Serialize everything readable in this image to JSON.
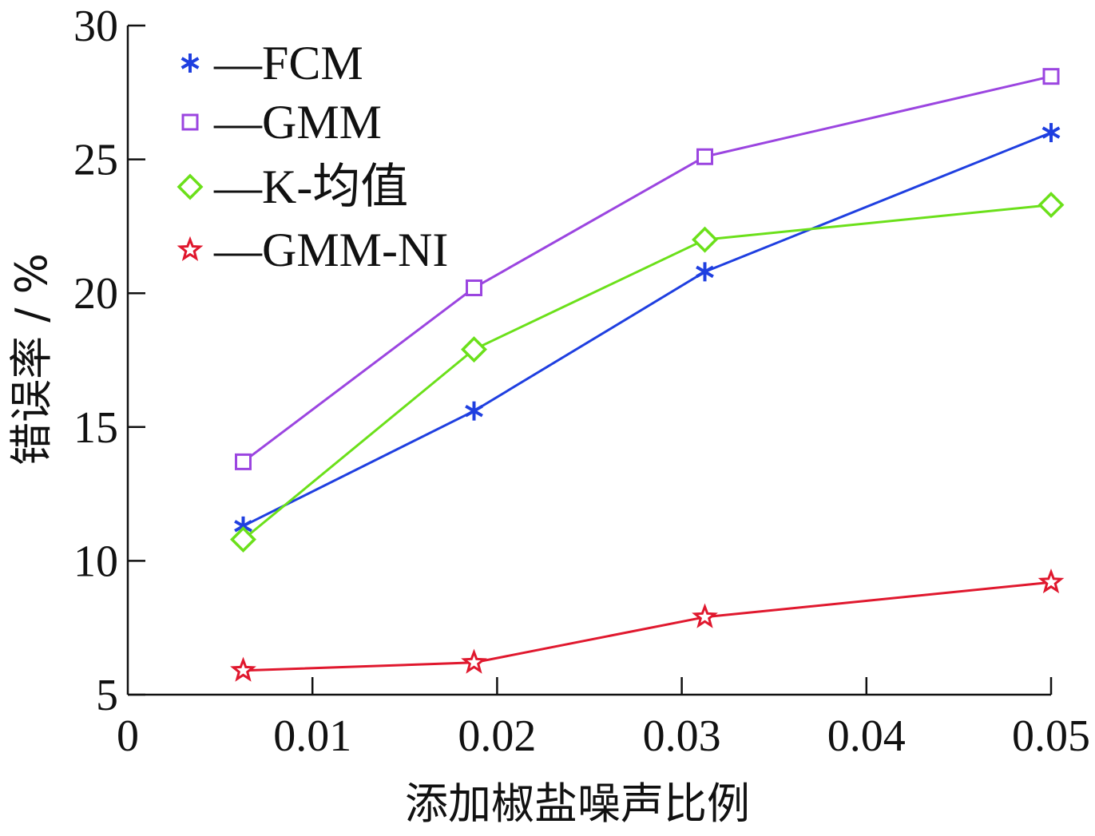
{
  "chart_data": {
    "type": "line",
    "xlabel": "添加椒盐噪声比例",
    "ylabel": "错误率 / %",
    "xlim": [
      0,
      0.05
    ],
    "ylim": [
      5,
      30
    ],
    "xticks": [
      "0",
      "0.01",
      "0.02",
      "0.03",
      "0.04",
      "0.05"
    ],
    "xtick_values": [
      0,
      0.01,
      0.02,
      0.03,
      0.04,
      0.05
    ],
    "yticks": [
      "5",
      "10",
      "15",
      "20",
      "25",
      "30"
    ],
    "ytick_values": [
      5,
      10,
      15,
      20,
      25,
      30
    ],
    "grid": false,
    "legend_position": "top-left",
    "legend_prefix": "—",
    "x": [
      0.00625,
      0.01875,
      0.03125,
      0.05
    ],
    "series": [
      {
        "name": "FCM",
        "marker": "asterisk",
        "color": "#1f3fe0",
        "values": [
          11.3,
          15.6,
          20.8,
          26.0
        ]
      },
      {
        "name": "GMM",
        "marker": "square",
        "color": "#9b45e0",
        "values": [
          13.7,
          20.2,
          25.1,
          28.1
        ]
      },
      {
        "name": "K-均值",
        "marker": "diamond",
        "color": "#6be01a",
        "values": [
          10.8,
          17.9,
          22.0,
          23.3
        ]
      },
      {
        "name": "GMM-NI",
        "marker": "star",
        "color": "#e0182e",
        "values": [
          5.9,
          6.2,
          7.9,
          9.2
        ]
      }
    ]
  }
}
